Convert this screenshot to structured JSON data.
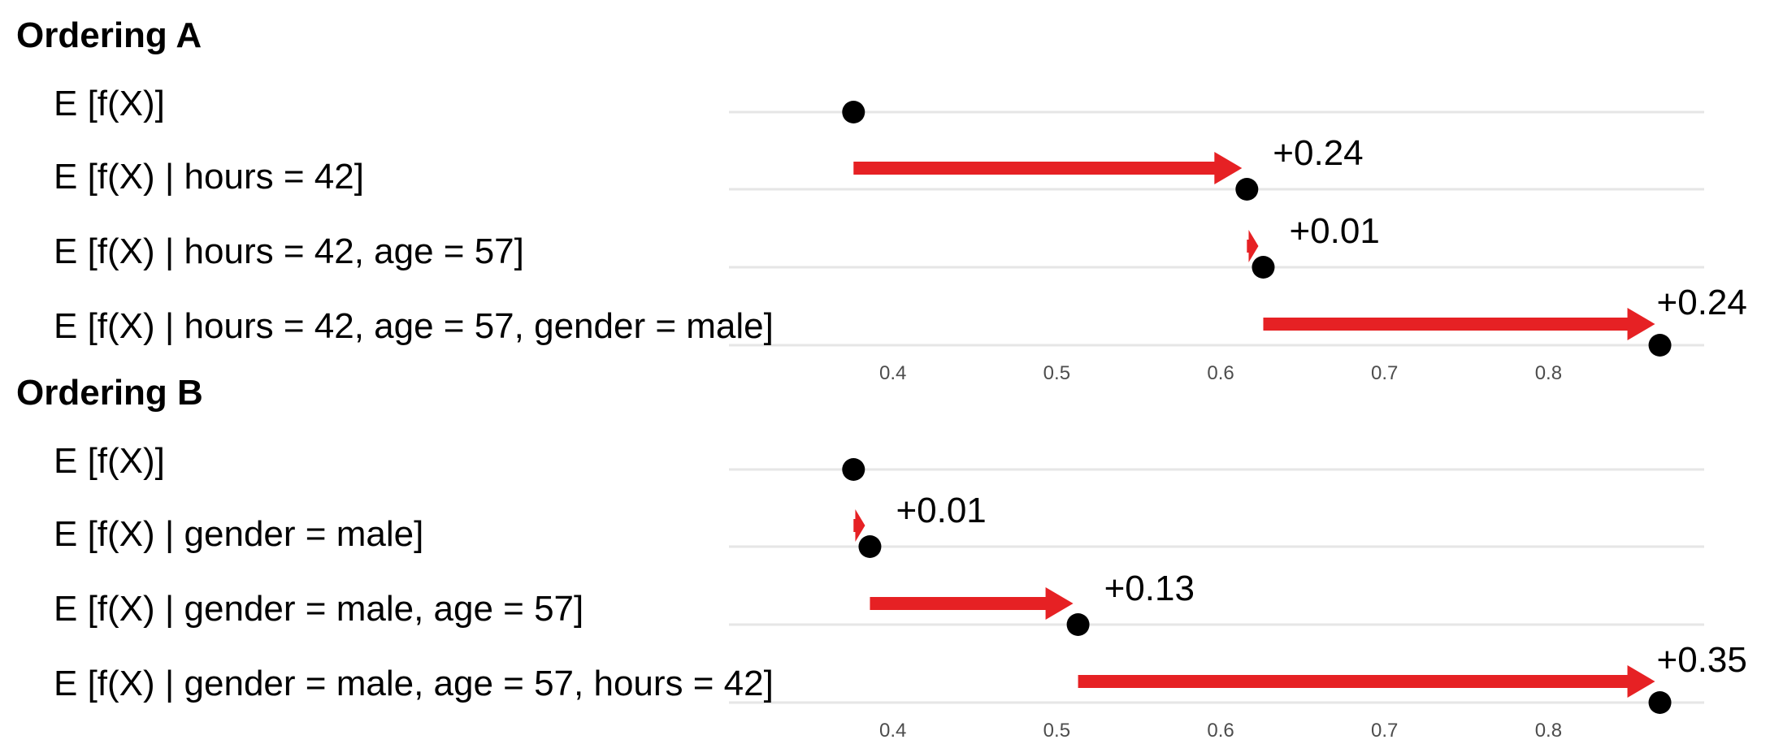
{
  "chart_data": [
    {
      "type": "arrow-dot",
      "title": "Ordering A",
      "xlim": [
        0.3,
        0.895
      ],
      "xticks": [
        0.4,
        0.5,
        0.6,
        0.7,
        0.8
      ],
      "grid": "horizontal",
      "rows": [
        {
          "label": "E [f(X)]",
          "value": 0.376,
          "from": null,
          "delta": ""
        },
        {
          "label": "E [f(X) | hours =  42]",
          "value": 0.616,
          "from": 0.376,
          "delta": "+0.24"
        },
        {
          "label": "E [f(X) | hours = 42, age =  57]",
          "value": 0.626,
          "from": 0.616,
          "delta": "+0.01"
        },
        {
          "label": "E [f(X) | hours = 42, age =  57, gender = male]",
          "value": 0.868,
          "from": 0.626,
          "delta": "+0.24"
        }
      ]
    },
    {
      "type": "arrow-dot",
      "title": "Ordering B",
      "xlim": [
        0.3,
        0.895
      ],
      "xticks": [
        0.4,
        0.5,
        0.6,
        0.7,
        0.8
      ],
      "grid": "horizontal",
      "rows": [
        {
          "label": "E [f(X)]",
          "value": 0.376,
          "from": null,
          "delta": ""
        },
        {
          "label": "E [f(X) | gender = male]",
          "value": 0.386,
          "from": 0.376,
          "delta": "+0.01"
        },
        {
          "label": "E [f(X) | gender = male, age =  57]",
          "value": 0.513,
          "from": 0.386,
          "delta": "+0.13"
        },
        {
          "label": "E [f(X) | gender = male, age =  57, hours = 42]",
          "value": 0.868,
          "from": 0.513,
          "delta": "+0.35"
        }
      ]
    }
  ],
  "colors": {
    "arrow": "#e62124",
    "point": "#000000",
    "grid": "#e6e6e6",
    "tick_text": "#4d4d4d"
  }
}
